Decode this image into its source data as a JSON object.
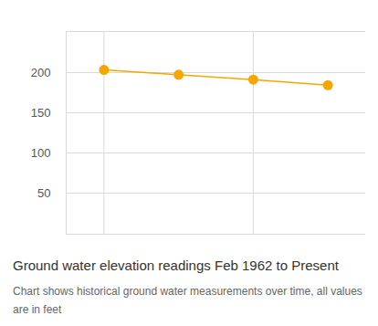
{
  "chart_data": {
    "type": "line",
    "title": "Ground water elevation readings Feb 1962 to Present",
    "subtitle": "Chart shows historical ground water measurements over time, all values are in feet",
    "categories": [
      null,
      null,
      null,
      null
    ],
    "values": [
      203,
      197,
      191,
      184
    ],
    "color": "#f7a600",
    "ylim": [
      0,
      250
    ],
    "yticks": [
      50,
      100,
      150,
      200
    ],
    "grid": true,
    "tick_labels": "y",
    "marker": "circle"
  }
}
